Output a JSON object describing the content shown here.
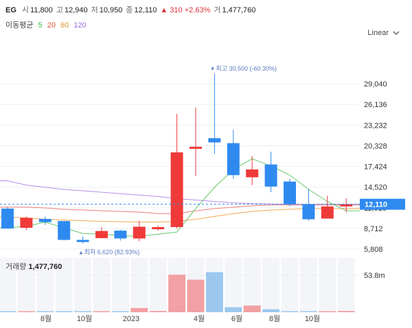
{
  "header": {
    "ticker": "EG",
    "open_label": "시",
    "open": "11,800",
    "high_label": "고",
    "high": "12,940",
    "low_label": "저",
    "low": "10,950",
    "close_label": "종",
    "close": "12,110",
    "change": "▲ 310 +2.63%",
    "volume_label": "거",
    "volume": "1,477,760"
  },
  "ma": {
    "label": "이동평균",
    "periods": [
      {
        "text": "5",
        "color": "#3cb44b"
      },
      {
        "text": "20",
        "color": "#e05a3c"
      },
      {
        "text": "60",
        "color": "#e0932c"
      },
      {
        "text": "120",
        "color": "#9b6fd6"
      }
    ]
  },
  "scale_label": "Linear",
  "colors": {
    "up": "#ef3a3a",
    "down": "#2f8af0",
    "up_vol": "#f2a0a3",
    "down_vol": "#9cc8ef"
  },
  "chart_data": {
    "type": "candlestick",
    "y_ticks": [
      "29,040",
      "26,136",
      "23,232",
      "20,328",
      "17,424",
      "14,520",
      "11,616",
      "8,712",
      "5,808"
    ],
    "y_range": [
      5808,
      31944
    ],
    "x_tick_labels": [
      "8월",
      "10월",
      "2023",
      "4월",
      "6월",
      "8월",
      "10월"
    ],
    "last_price": 12110,
    "last_price_label": "12,110",
    "high_annotation": "최고 30,500 (-60.30%)",
    "low_annotation": "최저 6,620 (82.93%)",
    "volume_title": "거래량",
    "volume_value": "1,477,760",
    "volume_tick": "53.8m",
    "volume_max": 65,
    "candles": [
      {
        "o": 11500,
        "c": 8700,
        "h": 11700,
        "l": 8700
      },
      {
        "o": 8800,
        "c": 10200,
        "h": 10400,
        "l": 8500
      },
      {
        "o": 10050,
        "c": 9600,
        "h": 10400,
        "l": 9200
      },
      {
        "o": 9750,
        "c": 7100,
        "h": 9750,
        "l": 7000
      },
      {
        "o": 7100,
        "c": 6800,
        "h": 7600,
        "l": 6620
      },
      {
        "o": 7350,
        "c": 8350,
        "h": 8900,
        "l": 7300
      },
      {
        "o": 8400,
        "c": 7300,
        "h": 8500,
        "l": 7000
      },
      {
        "o": 7300,
        "c": 8950,
        "h": 9800,
        "l": 6900
      },
      {
        "o": 8600,
        "c": 8900,
        "h": 9100,
        "l": 8400
      },
      {
        "o": 8900,
        "c": 19400,
        "h": 24800,
        "l": 8700
      },
      {
        "o": 19900,
        "c": 20200,
        "h": 25700,
        "l": 16100
      },
      {
        "o": 21400,
        "c": 20800,
        "h": 30500,
        "l": 19200
      },
      {
        "o": 20700,
        "c": 16200,
        "h": 22600,
        "l": 15700
      },
      {
        "o": 15900,
        "c": 17000,
        "h": 18900,
        "l": 14800
      },
      {
        "o": 17700,
        "c": 14600,
        "h": 19500,
        "l": 13800
      },
      {
        "o": 15300,
        "c": 12100,
        "h": 15700,
        "l": 11800
      },
      {
        "o": 12100,
        "c": 10000,
        "h": 14300,
        "l": 9800
      },
      {
        "o": 10100,
        "c": 11800,
        "h": 13300,
        "l": 10100
      },
      {
        "o": 11800,
        "c": 12110,
        "h": 12940,
        "l": 10950
      }
    ],
    "volumes": [
      0,
      0,
      0,
      0,
      0,
      0,
      1.2,
      5,
      1.5,
      45,
      39,
      48,
      6,
      8,
      3.5,
      0.8,
      0.5,
      0.4,
      1.5
    ],
    "ma5": [
      8800,
      9000,
      9600,
      8800,
      8000,
      7900,
      7700,
      7600,
      7900,
      8200,
      11500,
      14500,
      17000,
      18500,
      17500,
      16200,
      14200,
      12500,
      11200
    ],
    "ma20": [
      11700,
      11700,
      11600,
      11400,
      11300,
      11200,
      11100,
      11000,
      10800,
      10800,
      11200,
      11500,
      11700,
      11900,
      12000,
      12000,
      12000,
      12000,
      12000
    ],
    "ma60": [
      10300,
      10200,
      10000,
      9900,
      9800,
      9700,
      9650,
      9600,
      9600,
      9700,
      10000,
      10400,
      10800,
      11100,
      11300,
      11400,
      11500,
      11500,
      11500
    ],
    "ma120": [
      15400,
      14800,
      14500,
      14200,
      14000,
      13800,
      13600,
      13400,
      13200,
      12900,
      12700,
      12500,
      12300,
      12200,
      12150,
      12100,
      12100,
      12100,
      12100
    ]
  }
}
